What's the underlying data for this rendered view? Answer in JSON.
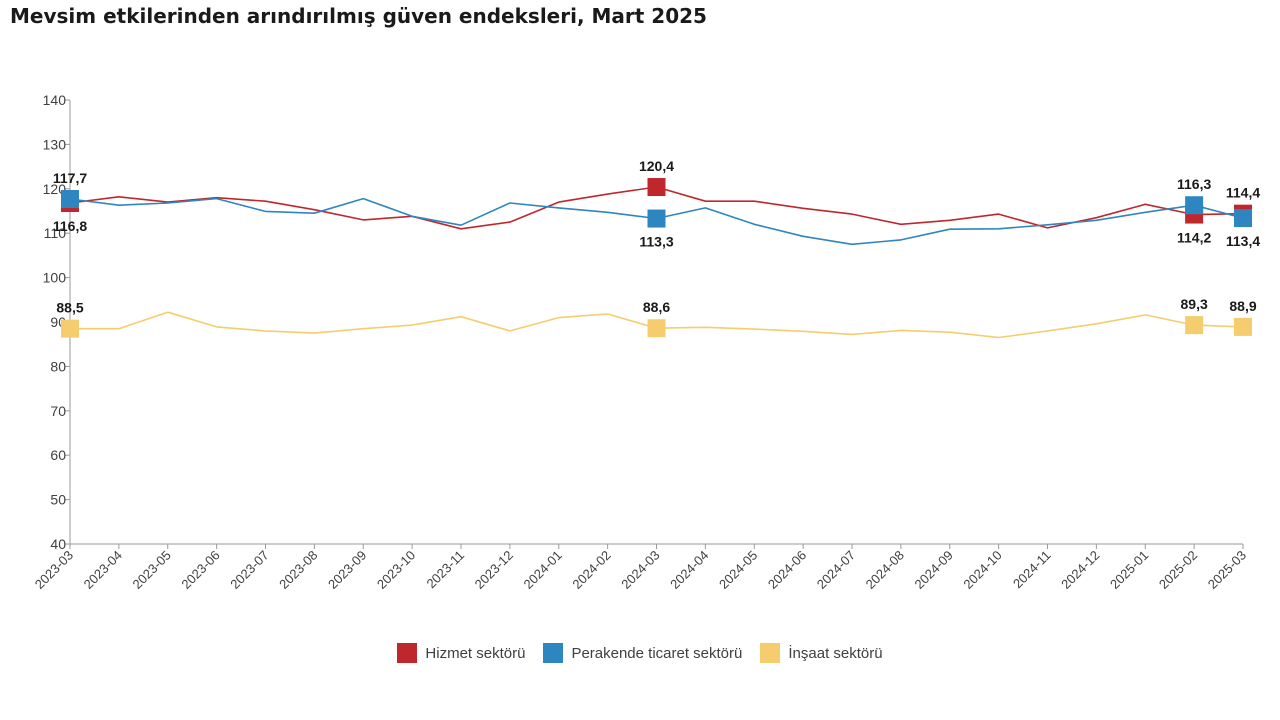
{
  "chart_data": {
    "type": "line",
    "title": "Mevsim etkilerinden arındırılmış güven endeksleri, Mart 2025",
    "xlabel": "",
    "ylabel": "",
    "ylim": [
      40,
      140
    ],
    "yticks": [
      "40",
      "50",
      "60",
      "70",
      "80",
      "90",
      "100",
      "110",
      "120",
      "130",
      "140"
    ],
    "grid": false,
    "legend_position": "bottom",
    "categories": [
      "2023-03",
      "2023-04",
      "2023-05",
      "2023-06",
      "2023-07",
      "2023-08",
      "2023-09",
      "2023-10",
      "2023-11",
      "2023-12",
      "2024-01",
      "2024-02",
      "2024-03",
      "2024-04",
      "2024-05",
      "2024-06",
      "2024-07",
      "2024-08",
      "2024-09",
      "2024-10",
      "2024-11",
      "2024-12",
      "2025-01",
      "2025-02",
      "2025-03"
    ],
    "series": [
      {
        "name": "Hizmet sektörü",
        "color": "#c0272d",
        "values": [
          116.8,
          118.2,
          117.0,
          118.0,
          117.2,
          115.3,
          113.0,
          113.8,
          111.0,
          112.5,
          117.0,
          118.8,
          120.4,
          117.2,
          117.2,
          115.6,
          114.3,
          112.0,
          112.9,
          114.3,
          111.2,
          113.5,
          116.5,
          114.2,
          114.4
        ],
        "markers": [
          {
            "index": 0,
            "label": "116,8",
            "label_pos": "below"
          },
          {
            "index": 12,
            "label": "120,4",
            "label_pos": "above"
          },
          {
            "index": 23,
            "label": "114,2",
            "label_pos": "below"
          },
          {
            "index": 24,
            "label": "114,4",
            "label_pos": "above"
          }
        ]
      },
      {
        "name": "Perakende ticaret sektörü",
        "color": "#2e86c1",
        "values": [
          117.7,
          116.3,
          116.8,
          117.8,
          114.9,
          114.5,
          117.8,
          113.8,
          111.8,
          116.8,
          115.7,
          114.7,
          113.3,
          115.7,
          112.0,
          109.3,
          107.5,
          108.5,
          110.9,
          111.0,
          111.9,
          112.9,
          114.7,
          116.3,
          113.4
        ],
        "markers": [
          {
            "index": 0,
            "label": "117,7",
            "label_pos": "above"
          },
          {
            "index": 12,
            "label": "113,3",
            "label_pos": "below"
          },
          {
            "index": 23,
            "label": "116,3",
            "label_pos": "above"
          },
          {
            "index": 24,
            "label": "113,4",
            "label_pos": "below"
          }
        ]
      },
      {
        "name": "İnşaat sektörü",
        "color": "#f5cd6e",
        "values": [
          88.5,
          88.5,
          92.2,
          88.9,
          88.0,
          87.5,
          88.5,
          89.3,
          91.2,
          88.0,
          91.0,
          91.8,
          88.6,
          88.8,
          88.4,
          87.9,
          87.2,
          88.1,
          87.7,
          86.5,
          88.0,
          89.6,
          91.6,
          89.3,
          88.9
        ],
        "markers": [
          {
            "index": 0,
            "label": "88,5",
            "label_pos": "above"
          },
          {
            "index": 12,
            "label": "88,6",
            "label_pos": "above"
          },
          {
            "index": 23,
            "label": "89,3",
            "label_pos": "above"
          },
          {
            "index": 24,
            "label": "88,9",
            "label_pos": "above"
          }
        ]
      }
    ]
  }
}
